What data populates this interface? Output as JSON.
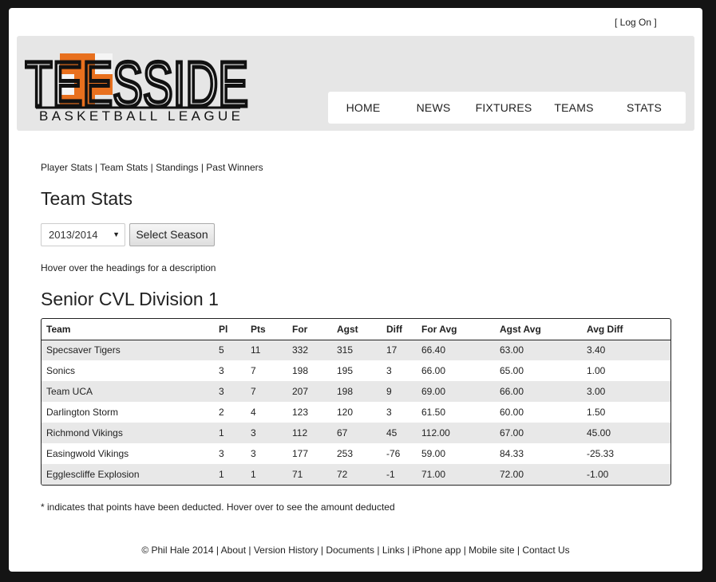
{
  "header": {
    "login": "[ Log On ]",
    "logo_text": "TEESSIDE",
    "logo_sub": "BASKETBALL LEAGUE",
    "nav": [
      "HOME",
      "NEWS",
      "FIXTURES",
      "TEAMS",
      "STATS"
    ]
  },
  "subnav": {
    "items": [
      "Player Stats",
      "Team Stats",
      "Standings",
      "Past Winners"
    ],
    "sep": " | "
  },
  "page_title": "Team Stats",
  "season": {
    "selected": "2013/2014",
    "button": "Select Season"
  },
  "hint": "Hover over the headings for a description",
  "division": "Senior CVL Division 1",
  "table": {
    "headers": [
      "Team",
      "Pl",
      "Pts",
      "For",
      "Agst",
      "Diff",
      "For Avg",
      "Agst Avg",
      "Avg Diff"
    ],
    "rows": [
      [
        "Specsaver Tigers",
        "5",
        "11",
        "332",
        "315",
        "17",
        "66.40",
        "63.00",
        "3.40"
      ],
      [
        "Sonics",
        "3",
        "7",
        "198",
        "195",
        "3",
        "66.00",
        "65.00",
        "1.00"
      ],
      [
        "Team UCA",
        "3",
        "7",
        "207",
        "198",
        "9",
        "69.00",
        "66.00",
        "3.00"
      ],
      [
        "Darlington Storm",
        "2",
        "4",
        "123",
        "120",
        "3",
        "61.50",
        "60.00",
        "1.50"
      ],
      [
        "Richmond Vikings",
        "1",
        "3",
        "112",
        "67",
        "45",
        "112.00",
        "67.00",
        "45.00"
      ],
      [
        "Easingwold Vikings",
        "3",
        "3",
        "177",
        "253",
        "-76",
        "59.00",
        "84.33",
        "-25.33"
      ],
      [
        "Egglescliffe Explosion",
        "1",
        "1",
        "71",
        "72",
        "-1",
        "71.00",
        "72.00",
        "-1.00"
      ]
    ]
  },
  "footnote": "* indicates that points have been deducted. Hover over to see the amount deducted",
  "footer": {
    "copyright": "© Phil Hale 2014",
    "links": [
      "About",
      "Version History",
      "Documents",
      "Links",
      "iPhone app",
      "Mobile site",
      "Contact Us"
    ]
  },
  "colors": {
    "logo_orange": "#e8701e",
    "header_bg": "#e6e6e6",
    "row_alt": "#e8e8e8"
  }
}
